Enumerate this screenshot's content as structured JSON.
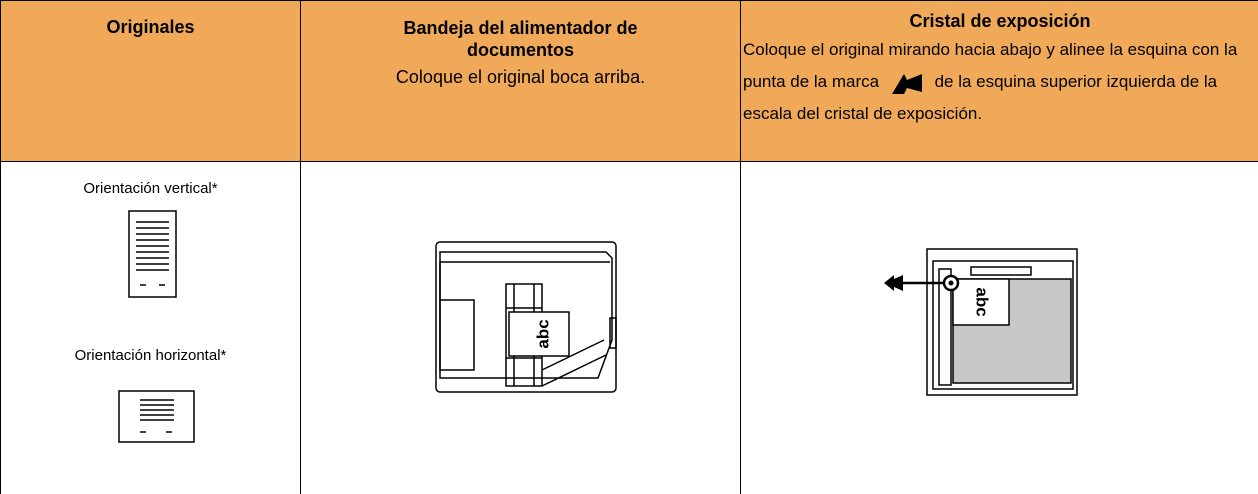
{
  "table": {
    "headers": [
      {
        "title": "Originales"
      },
      {
        "title": "Bandeja del alimentador de documentos",
        "description": "Coloque el original boca arriba."
      },
      {
        "title": "Cristal de exposición",
        "description_start": "Coloque el original mirando hacia abajo y alinee la esquina con la punta de la marca",
        "description_end": "de la esquina superior izquierda de la escala del cristal de exposición."
      }
    ],
    "originals": [
      "Orientación vertical*",
      "Orientación horizontal*"
    ],
    "feeder_label": "abc",
    "glass_label": "abc"
  }
}
